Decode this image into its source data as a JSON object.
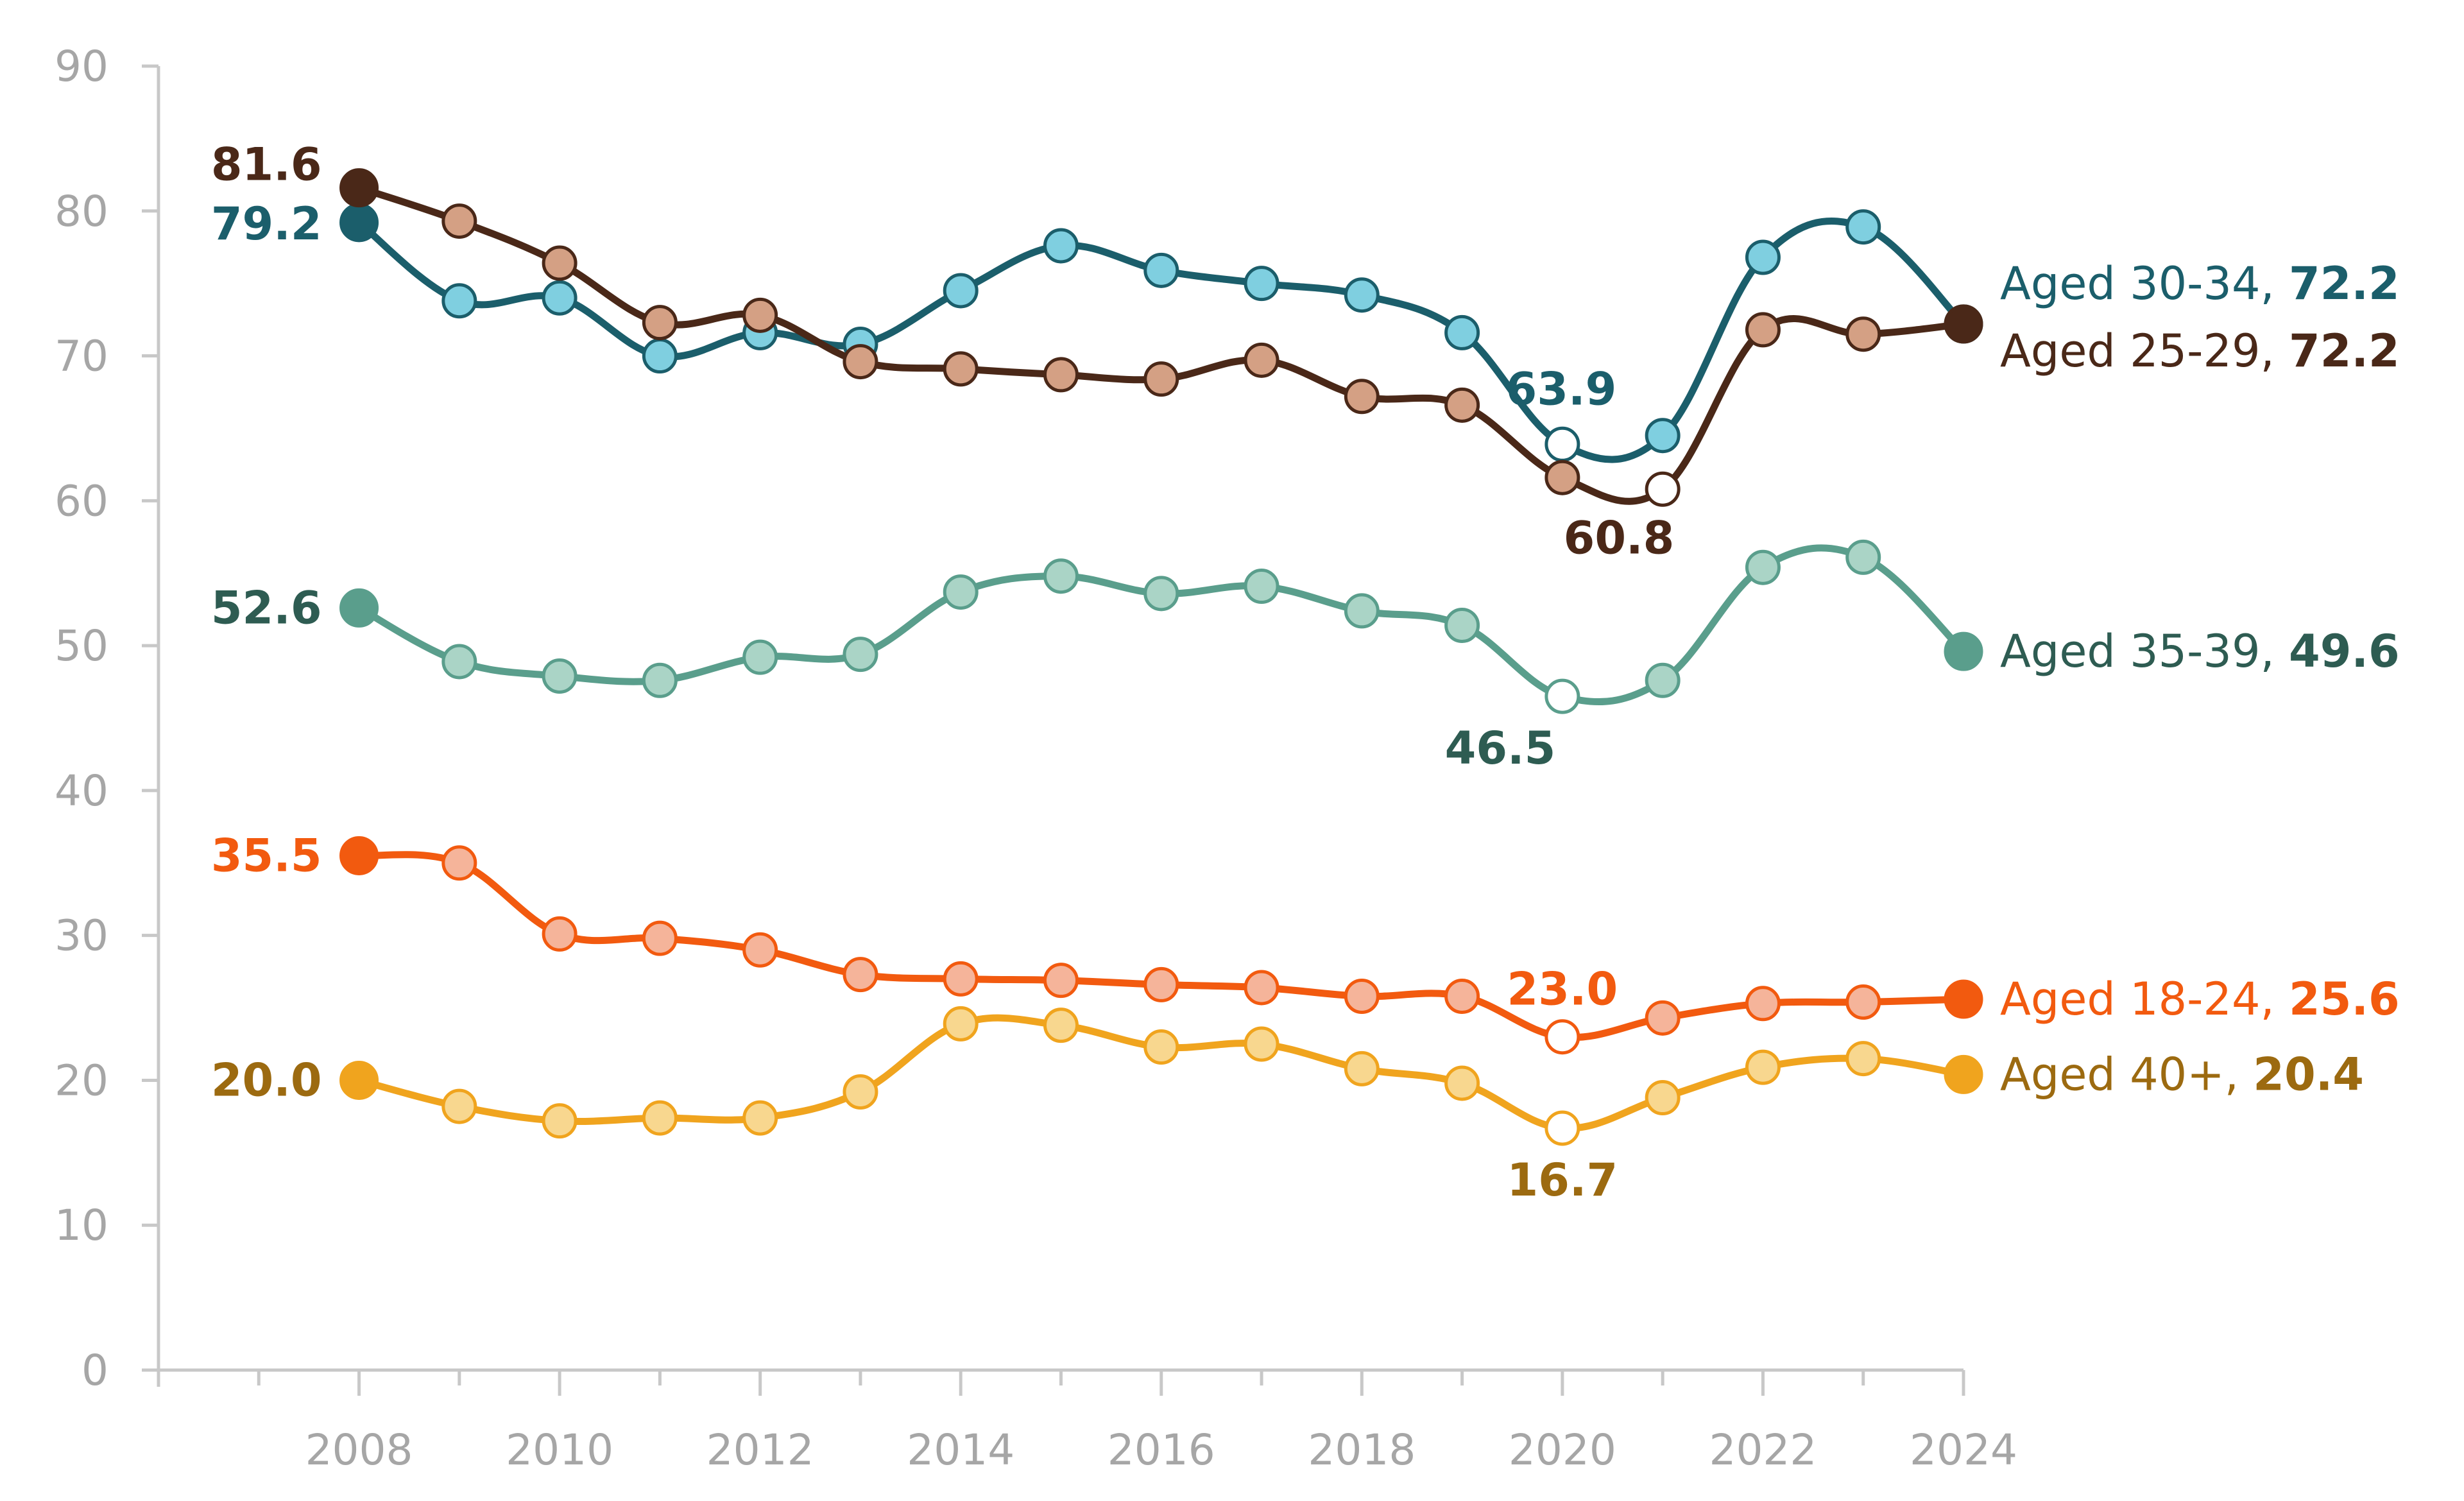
{
  "chart_data": {
    "type": "line",
    "title": "",
    "xlabel": "",
    "ylabel": "",
    "x": [
      2008,
      2009,
      2010,
      2011,
      2012,
      2013,
      2014,
      2015,
      2016,
      2017,
      2018,
      2019,
      2020,
      2021,
      2022,
      2023,
      2024
    ],
    "x_ticks": [
      "2008",
      "2010",
      "2012",
      "2014",
      "2016",
      "2018",
      "2020",
      "2022",
      "2024"
    ],
    "xlim": [
      2006,
      2024
    ],
    "ylim": [
      0,
      90
    ],
    "y_ticks": [
      "0",
      "10",
      "20",
      "30",
      "40",
      "50",
      "60",
      "70",
      "80",
      "90"
    ],
    "grid": false,
    "legend": "none",
    "series": [
      {
        "name": "Aged 30-34",
        "end_label": "Aged 30-34, ",
        "end_value": "72.2",
        "color": "#1b5e6b",
        "marker_fill": "#7fcfe0",
        "text_color": "#1b5e6b",
        "values": [
          79.2,
          73.8,
          74.0,
          70.0,
          71.6,
          70.8,
          74.5,
          77.6,
          75.9,
          75.0,
          74.2,
          71.6,
          63.9,
          64.5,
          76.8,
          78.9,
          72.2
        ],
        "labels": {
          "0": "79.2",
          "12": "63.9"
        }
      },
      {
        "name": "Aged 25-29",
        "end_label": "Aged 25-29, ",
        "end_value": "72.2",
        "color": "#4a2818",
        "marker_fill": "#d4a084",
        "text_color": "#4a2818",
        "values": [
          81.6,
          79.3,
          76.4,
          72.3,
          72.8,
          69.6,
          69.1,
          68.7,
          68.4,
          69.7,
          67.2,
          66.6,
          61.6,
          60.8,
          71.8,
          71.5,
          72.2
        ],
        "labels": {
          "0": "81.6",
          "13": "60.8"
        }
      },
      {
        "name": "Aged 35-39",
        "end_label": "Aged 35-39, ",
        "end_value": "49.6",
        "color": "#5a9e8c",
        "marker_fill": "#aad4c6",
        "text_color": "#2e5c52",
        "values": [
          52.6,
          48.9,
          47.9,
          47.6,
          49.2,
          49.4,
          53.7,
          54.8,
          53.6,
          54.1,
          52.4,
          51.4,
          46.5,
          47.6,
          55.4,
          56.1,
          49.6
        ],
        "labels": {
          "0": "52.6",
          "12": "46.5"
        }
      },
      {
        "name": "Aged 18-24",
        "end_label": "Aged 18-24, ",
        "end_value": "25.6",
        "color": "#f25a0f",
        "marker_fill": "#f5b49a",
        "text_color": "#f25a0f",
        "values": [
          35.5,
          35.0,
          30.1,
          29.8,
          29.0,
          27.3,
          27.0,
          26.9,
          26.6,
          26.4,
          25.8,
          25.8,
          23.0,
          24.3,
          25.3,
          25.4,
          25.6
        ],
        "labels": {
          "0": "35.5",
          "12": "23.0"
        }
      },
      {
        "name": "Aged 40+",
        "end_label": "Aged 40+, ",
        "end_value": "20.4",
        "color": "#f0a41e",
        "marker_fill": "#f8d78f",
        "text_color": "#9c6a10",
        "values": [
          20.0,
          18.2,
          17.2,
          17.4,
          17.4,
          19.2,
          23.9,
          23.8,
          22.3,
          22.5,
          20.8,
          19.8,
          16.7,
          18.8,
          20.9,
          21.5,
          20.4
        ],
        "labels": {
          "0": "20.0",
          "12": "16.7"
        }
      }
    ]
  }
}
